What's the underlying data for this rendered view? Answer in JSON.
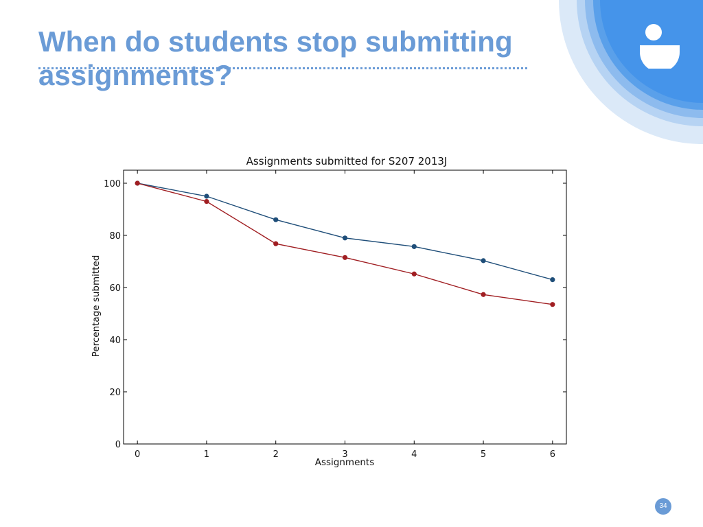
{
  "slide": {
    "title": "When do students stop submitting assignments?",
    "page_number": "34"
  },
  "logo": {
    "icon": "open-university-logo-icon",
    "color": "#ffffff"
  },
  "theme": {
    "accent": "#6a9bd6",
    "circle_colors": [
      "#dbe9f8",
      "#b6d3f3",
      "#8dbbee",
      "#5aa0ea",
      "#3f8de6"
    ]
  },
  "chart_data": {
    "type": "line",
    "title": "Assignments submitted for S207 2013J",
    "xlabel": "Assignments",
    "ylabel": "Percentage submitted",
    "x": [
      0,
      1,
      2,
      3,
      4,
      5,
      6
    ],
    "xlim": [
      -0.2,
      6.2
    ],
    "ylim": [
      0,
      105
    ],
    "xticks": [
      "0",
      "1",
      "2",
      "3",
      "4",
      "5",
      "6"
    ],
    "yticks": [
      "0",
      "20",
      "40",
      "60",
      "80",
      "100"
    ],
    "grid": false,
    "legend": "none",
    "series": [
      {
        "values": [
          100,
          95,
          86,
          79,
          75.7,
          70.3,
          63
        ],
        "color": "#1f4e79"
      },
      {
        "values": [
          100,
          93,
          76.8,
          71.5,
          65.2,
          57.3,
          53.5
        ],
        "color": "#a01e22"
      }
    ]
  }
}
